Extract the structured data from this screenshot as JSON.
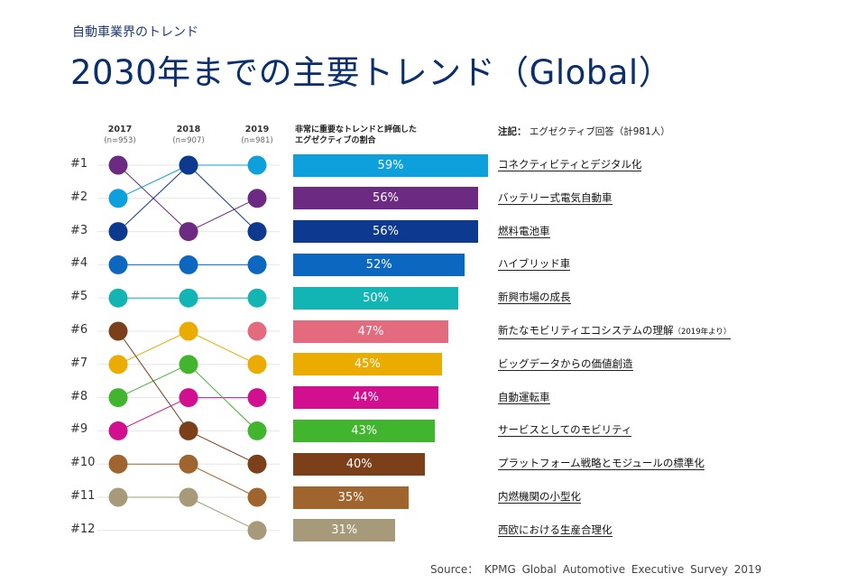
{
  "header": {
    "subtitle": "自動車業界のトレンド",
    "title": "2030年までの主要トレンド（Global）"
  },
  "columns": [
    {
      "year": "2017",
      "n": "(n=953)"
    },
    {
      "year": "2018",
      "n": "(n=907)"
    },
    {
      "year": "2019",
      "n": "(n=981)"
    }
  ],
  "bar_header": {
    "line1": "非常に重要なトレンドと評価した",
    "line2": "エグゼクティブの割合"
  },
  "note": {
    "label": "注記：",
    "text": "エグゼクティブ回答（計981人）"
  },
  "source": "Source： KPMG Global Automotive Executive Survey 2019",
  "chart_data": {
    "type": "bar",
    "orientation": "horizontal",
    "unit": "%",
    "ranks": [
      "#1",
      "#2",
      "#3",
      "#4",
      "#5",
      "#6",
      "#7",
      "#8",
      "#9",
      "#10",
      "#11",
      "#12"
    ],
    "trends": [
      {
        "name": "コネクティビティとデジタル化",
        "value": 59,
        "label": "59%",
        "color": "#0ea0dc",
        "ranks": [
          2,
          1,
          1
        ]
      },
      {
        "name": "バッテリー式電気自動車",
        "value": 56,
        "label": "56%",
        "color": "#6c2a83",
        "ranks": [
          1,
          3,
          2
        ]
      },
      {
        "name": "燃料電池車",
        "value": 56,
        "label": "56%",
        "color": "#0d3a8e",
        "ranks": [
          3,
          1,
          3
        ]
      },
      {
        "name": "ハイブリッド車",
        "value": 52,
        "label": "52%",
        "color": "#0b67c0",
        "ranks": [
          4,
          4,
          4
        ]
      },
      {
        "name": "新興市場の成長",
        "value": 50,
        "label": "50%",
        "color": "#12b4b4",
        "ranks": [
          5,
          5,
          5
        ]
      },
      {
        "name": "新たなモビリティエコシステムの理解",
        "note": "（2019年より）",
        "value": 47,
        "label": "47%",
        "color": "#e46b7e",
        "ranks": [
          null,
          null,
          6
        ]
      },
      {
        "name": "ビッグデータからの価値創造",
        "value": 45,
        "label": "45%",
        "color": "#ebab00",
        "ranks": [
          7,
          6,
          7
        ]
      },
      {
        "name": "自動運転車",
        "value": 44,
        "label": "44%",
        "color": "#d10f8f",
        "ranks": [
          9,
          8,
          8
        ]
      },
      {
        "name": "サービスとしてのモビリティ",
        "value": 43,
        "label": "43%",
        "color": "#40b52d",
        "ranks": [
          8,
          7,
          9
        ]
      },
      {
        "name": "プラットフォーム戦略とモジュールの標準化",
        "value": 40,
        "label": "40%",
        "color": "#7b3f1a",
        "ranks": [
          6,
          9,
          10
        ]
      },
      {
        "name": "内燃機関の小型化",
        "value": 35,
        "label": "35%",
        "color": "#a0652f",
        "ranks": [
          10,
          10,
          11
        ]
      },
      {
        "name": "西欧における生産合理化",
        "value": 31,
        "label": "31%",
        "color": "#a69a7a",
        "ranks": [
          11,
          11,
          12
        ]
      }
    ]
  }
}
